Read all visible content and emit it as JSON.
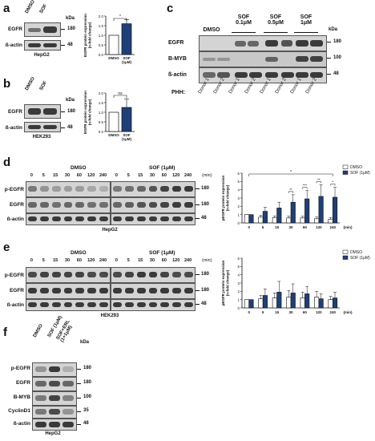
{
  "panels": {
    "a": {
      "label": "a",
      "blot": {
        "lanes": [
          "DMSO",
          "SOF"
        ],
        "rows": [
          "EGFR",
          "ß-actin"
        ],
        "markers": [
          "180",
          "48"
        ],
        "kda": "kDa",
        "cell_line": "HepG2"
      }
    },
    "b": {
      "label": "b",
      "blot": {
        "lanes": [
          "DMSO",
          "SOF"
        ],
        "rows": [
          "EGFR",
          "ß-actin"
        ],
        "markers": [
          "180",
          "48"
        ],
        "kda": "kDa",
        "cell_line": "HEK293"
      }
    },
    "c": {
      "label": "c",
      "groups": [
        "DMSO",
        "SOF\n0.1μM",
        "SOF\n0.5μM",
        "SOF\n1μM"
      ],
      "rows": [
        "EGFR",
        "B-MYB",
        "ß-actin"
      ],
      "markers": [
        "180",
        "100",
        "48"
      ],
      "kda": "kDa",
      "phh_label": "PHH:",
      "donors": [
        "Donor 1",
        "Donor 2",
        "Donor 1",
        "Donor 2",
        "Donor 1",
        "Donor 2",
        "Donor 1",
        "Donor 2"
      ]
    },
    "d": {
      "label": "d",
      "conditions": [
        "DMSO",
        "SOF (1μM)"
      ],
      "times": [
        "0",
        "5",
        "15",
        "30",
        "60",
        "120",
        "240"
      ],
      "min_label": "(min)",
      "rows": [
        "p-EGFR",
        "EGFR",
        "ß-actin"
      ],
      "markers": [
        "180",
        "180",
        "48"
      ],
      "cell_line": "HepG2"
    },
    "e": {
      "label": "e",
      "conditions": [
        "DMSO",
        "SOF (1μM)"
      ],
      "times": [
        "0",
        "5",
        "15",
        "30",
        "60",
        "120",
        "240"
      ],
      "min_label": "(min)",
      "rows": [
        "p-EGFR",
        "EGFR",
        "ß-actin"
      ],
      "markers": [
        "180",
        "180",
        "48"
      ],
      "cell_line": "HEK293"
    },
    "f": {
      "label": "f",
      "lanes": [
        "DMSO",
        "SOF (1μM)",
        "SOF+ERL\n(1+1μM)"
      ],
      "rows": [
        "p-EGFR",
        "EGFR",
        "B-MYB",
        "CyclinD1",
        "ß-actin"
      ],
      "markers": [
        "180",
        "180",
        "100",
        "35",
        "48"
      ],
      "kda": "kDa",
      "cell_line": "HepG2"
    }
  },
  "colors": {
    "dmso": "#ffffff",
    "sof": "#1f3f78",
    "axis": "#111111"
  },
  "chart_data": [
    {
      "type": "bar",
      "panel": "a",
      "categories": [
        "DMSO",
        "SOF\n(1μM)"
      ],
      "values": [
        1.0,
        1.6
      ],
      "errors": [
        0.0,
        0.22
      ],
      "ylabel": "EGFR protein expression\n(n-fold change)",
      "ylim": [
        0,
        2.0
      ],
      "yticks": [
        "0.0",
        "0.5",
        "1.0",
        "1.5",
        "2.0"
      ],
      "significance": "*"
    },
    {
      "type": "bar",
      "panel": "b",
      "categories": [
        "DMSO",
        "SOF\n(1μM)"
      ],
      "values": [
        1.0,
        1.25
      ],
      "errors": [
        0.0,
        0.45
      ],
      "ylabel": "EGFR protein expression\n(n-fold change)",
      "ylim": [
        0,
        2.0
      ],
      "yticks": [
        "0.0",
        "0.5",
        "1.0",
        "1.5",
        "2.0"
      ],
      "significance": "ns"
    },
    {
      "type": "bar",
      "panel": "d",
      "categories": [
        "0",
        "5",
        "15",
        "30",
        "60",
        "120",
        "240"
      ],
      "xlabel": "(min)",
      "ylabel": "pEGFR protein expression\n(n-fold change)",
      "ylim": [
        0,
        6
      ],
      "yticks": [
        "0",
        "1",
        "2",
        "3",
        "4",
        "5",
        "6"
      ],
      "series": [
        {
          "name": "DMSO",
          "values": [
            1.0,
            0.7,
            0.65,
            0.6,
            0.6,
            0.5,
            0.45
          ],
          "errors": [
            0,
            0.2,
            0.2,
            0.2,
            0.2,
            0.2,
            0.2
          ]
        },
        {
          "name": "SOF (1μM)",
          "values": [
            1.0,
            1.4,
            1.8,
            2.5,
            2.9,
            3.2,
            3.1
          ],
          "errors": [
            0,
            0.5,
            0.7,
            0.9,
            1.0,
            1.4,
            1.2
          ]
        }
      ],
      "significance": [
        "*",
        "**",
        "***",
        "**",
        "*"
      ],
      "legend": "top-right"
    },
    {
      "type": "bar",
      "panel": "e",
      "categories": [
        "0",
        "5",
        "15",
        "30",
        "60",
        "120",
        "240"
      ],
      "xlabel": "(min)",
      "ylabel": "pEGFR protein expression\n(n-fold change)",
      "ylim": [
        0,
        6
      ],
      "yticks": [
        "0",
        "1",
        "2",
        "3",
        "4",
        "5",
        "6"
      ],
      "series": [
        {
          "name": "DMSO",
          "values": [
            1.0,
            1.1,
            1.2,
            1.3,
            1.2,
            1.3,
            1.0
          ],
          "errors": [
            0,
            0.4,
            0.6,
            0.8,
            0.7,
            0.7,
            0.4
          ]
        },
        {
          "name": "SOF (1μM)",
          "values": [
            1.0,
            1.5,
            1.9,
            1.8,
            1.7,
            1.1,
            1.2
          ],
          "errors": [
            0,
            0.8,
            1.3,
            1.1,
            0.9,
            0.6,
            0.7
          ]
        }
      ],
      "legend": "top-right"
    }
  ]
}
